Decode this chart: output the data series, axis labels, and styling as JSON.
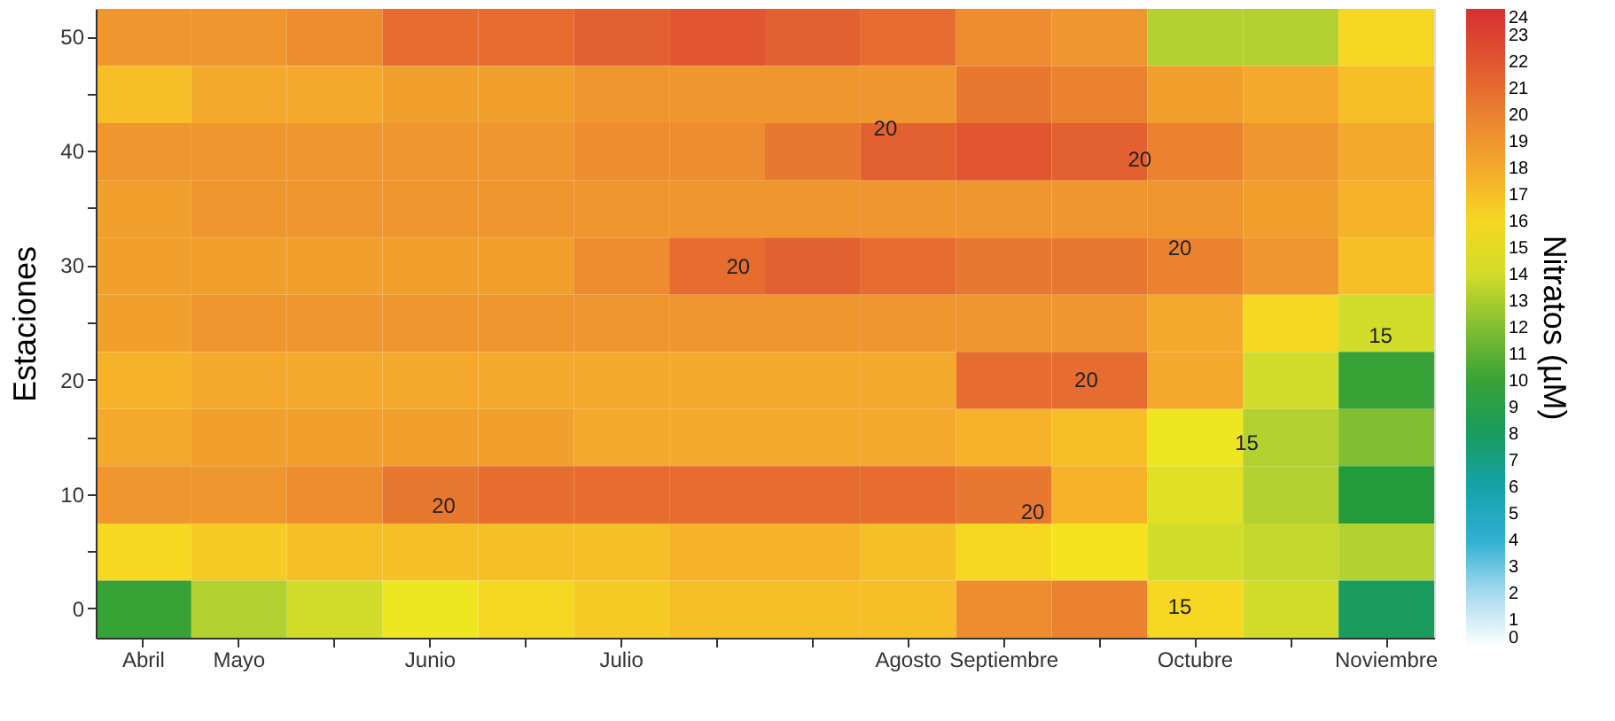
{
  "chart_data": {
    "type": "heatmap",
    "ylabel": "Estaciones",
    "clabel": "Nitratos (µM)",
    "categories": [
      "Abril",
      "Mayo",
      null,
      "Junio",
      null,
      "Julio",
      null,
      null,
      "Agosto",
      "Septiembre",
      null,
      "Octubre",
      null,
      "Noviembre"
    ],
    "y_categories": [
      "50",
      null,
      "40",
      null,
      "30",
      null,
      "20",
      null,
      "10",
      null,
      "0"
    ],
    "cells": [
      [
        19,
        19,
        19.5,
        21,
        21,
        21.5,
        22,
        21.5,
        21,
        19.5,
        19,
        13,
        13,
        16
      ],
      [
        17,
        18,
        18,
        18.5,
        18.5,
        19,
        19,
        19,
        19,
        20.5,
        20,
        18.5,
        18,
        17
      ],
      [
        19,
        19,
        19,
        19,
        19,
        19.5,
        19.5,
        20.5,
        21.5,
        22,
        21.5,
        20,
        19,
        18
      ],
      [
        18.5,
        19,
        19,
        19,
        19,
        19,
        19,
        19,
        19,
        19,
        19,
        19,
        18.5,
        17.5
      ],
      [
        18.5,
        18.5,
        18.5,
        18.5,
        18.5,
        19.5,
        21,
        21.5,
        21,
        20.5,
        20.5,
        20,
        19,
        17
      ],
      [
        18.5,
        19,
        19,
        19,
        19,
        19,
        19,
        19,
        19,
        19,
        19,
        18,
        16,
        14
      ],
      [
        17.5,
        18,
        18,
        18,
        18,
        18,
        18,
        18,
        18,
        21,
        21,
        18,
        14,
        10
      ],
      [
        18,
        18.5,
        18.5,
        18.5,
        18.5,
        18,
        18,
        18,
        18,
        17.5,
        17,
        15,
        13,
        12
      ],
      [
        19,
        19,
        19.5,
        20.5,
        21,
        21,
        21,
        21,
        21,
        20.5,
        17.5,
        14.5,
        13,
        9
      ],
      [
        16,
        16.5,
        17,
        17,
        17,
        17,
        17.5,
        17.5,
        17,
        16,
        15.5,
        14,
        13.5,
        13
      ],
      [
        10,
        13,
        14,
        15,
        16,
        16.5,
        17,
        17,
        17,
        19.5,
        20,
        16,
        14,
        8
      ]
    ],
    "clim": [
      0,
      24
    ],
    "cticks": [
      0,
      1,
      2,
      3,
      4,
      5,
      6,
      7,
      8,
      9,
      10,
      11,
      12,
      13,
      14,
      15,
      16,
      17,
      18,
      19,
      20,
      21,
      22,
      23,
      24
    ],
    "colors": [
      "#ffffff",
      "#9ed8ee",
      "#1aa8cc",
      "#14a0a0",
      "#1c9a3c",
      "#4aa832",
      "#b8d432",
      "#f6e81e",
      "#f6b42a",
      "#ec8a30",
      "#e25a30",
      "#d83030"
    ],
    "annotations": [
      "20",
      "20",
      "20",
      "20",
      "20",
      "20",
      "20",
      "15",
      "15",
      "15"
    ]
  }
}
